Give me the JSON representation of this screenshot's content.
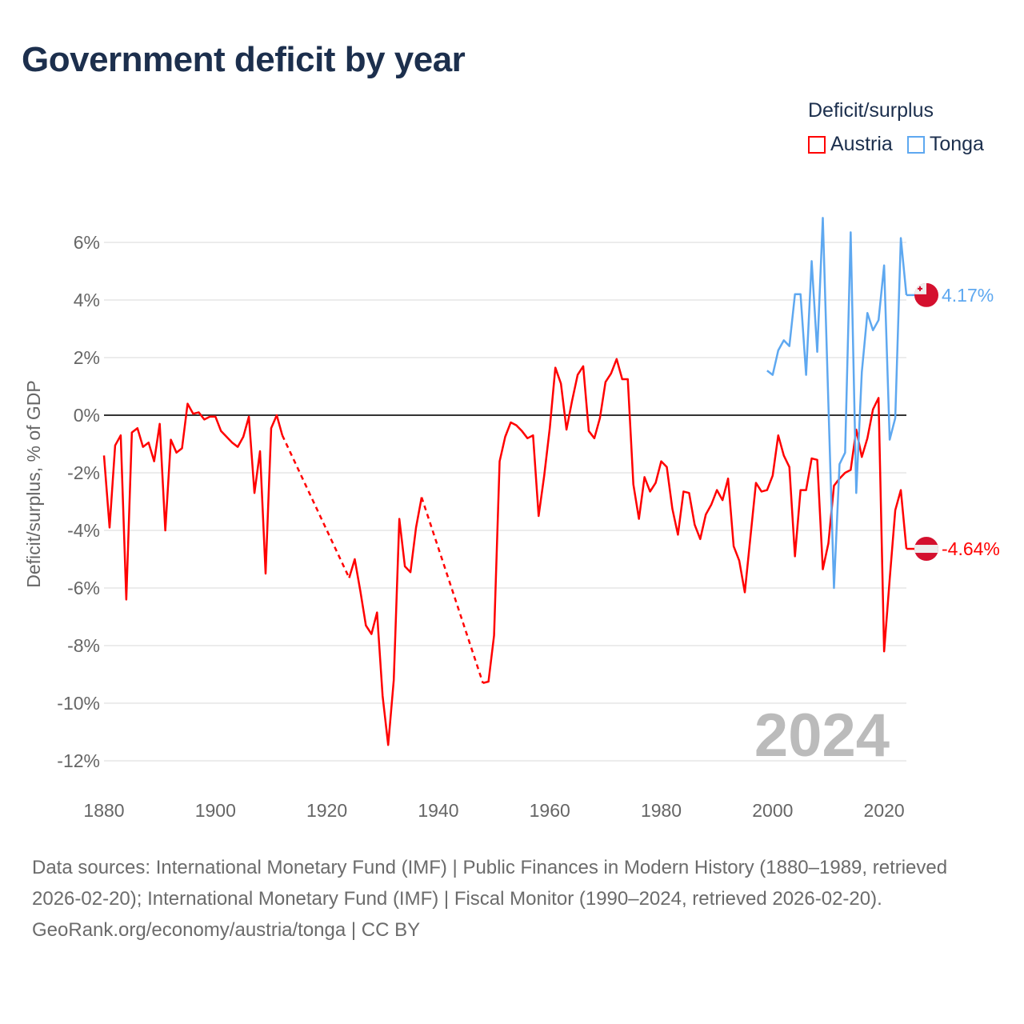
{
  "title": "Government deficit by year",
  "legend": {
    "title": "Deficit/surplus",
    "items": [
      "Austria",
      "Tonga"
    ]
  },
  "footer": {
    "sources": "Data sources: International Monetary Fund (IMF) | Public Finances in Modern History (1880–1989, retrieved 2026-02-20); International Monetary Fund (IMF) | Fiscal Monitor (1990–2024, retrieved 2026-02-20).",
    "credit": "GeoRank.org/economy/austria/tonga | CC BY"
  },
  "colors": {
    "Austria": "#ff0000",
    "Tonga": "#5ea8f0",
    "zero_line": "#333333",
    "grid": "#e6e6e6",
    "year_label": "#bbbbbb"
  },
  "chart_data": {
    "type": "line",
    "title": "Government deficit by year",
    "xlabel": "",
    "ylabel": "Deficit/surplus, % of GDP",
    "xlim": [
      1880,
      2024
    ],
    "ylim": [
      -12,
      6
    ],
    "x_ticks": [
      1880,
      1900,
      1920,
      1940,
      1960,
      1980,
      2000,
      2020
    ],
    "x_tick_labels": [
      "1880",
      "1900",
      "1920",
      "1940",
      "1960",
      "1980",
      "2000",
      "2020"
    ],
    "y_ticks": [
      6,
      4,
      2,
      0,
      -2,
      -4,
      -6,
      -8,
      -10,
      -12
    ],
    "y_tick_labels": [
      "6%",
      "4%",
      "2%",
      "0%",
      "-2%",
      "-4%",
      "-6%",
      "-8%",
      "-10%",
      "-12%"
    ],
    "year_label": "2024",
    "legend_position": "top-right",
    "series": [
      {
        "name": "Austria",
        "start_year": 1880,
        "end_label": "-4.64%",
        "flag": "austria-flag",
        "values": [
          -1.4,
          -3.9,
          -1.05,
          -0.7,
          -6.4,
          -0.6,
          -0.45,
          -1.1,
          -0.95,
          -1.6,
          -0.3,
          -4.0,
          -0.85,
          -1.3,
          -1.15,
          0.4,
          0.05,
          0.1,
          -0.15,
          -0.05,
          -0.05,
          -0.55,
          -0.75,
          -0.95,
          -1.1,
          -0.75,
          -0.05,
          -2.7,
          -1.25,
          -5.5,
          -0.45,
          0.0,
          -0.7,
          null,
          null,
          null,
          null,
          null,
          null,
          null,
          null,
          null,
          null,
          null,
          -5.65,
          -5.0,
          -6.1,
          -7.3,
          -7.6,
          -6.85,
          -9.75,
          -11.45,
          -9.2,
          -3.6,
          -5.25,
          -5.45,
          -3.9,
          -2.85,
          null,
          null,
          null,
          null,
          null,
          null,
          null,
          null,
          null,
          null,
          -9.3,
          -9.25,
          -7.65,
          -1.6,
          -0.75,
          -0.25,
          -0.35,
          -0.55,
          -0.8,
          -0.7,
          -3.5,
          -2.1,
          -0.45,
          1.65,
          1.1,
          -0.5,
          0.5,
          1.4,
          1.7,
          -0.55,
          -0.8,
          -0.1,
          1.15,
          1.45,
          1.95,
          1.25,
          1.25,
          -2.4,
          -3.6,
          -2.15,
          -2.65,
          -2.35,
          -1.6,
          -1.8,
          -3.25,
          -4.15,
          -2.65,
          -2.7,
          -3.8,
          -4.3,
          -3.45,
          -3.1,
          -2.6,
          -2.95,
          -2.2,
          -4.55,
          -5.05,
          -6.15,
          -4.25,
          -2.35,
          -2.65,
          -2.6,
          -2.1,
          -0.7,
          -1.4,
          -1.8,
          -4.9,
          -2.6,
          -2.6,
          -1.5,
          -1.55,
          -5.35,
          -4.45,
          -2.45,
          -2.2,
          -2.0,
          -1.9,
          -0.5,
          -1.45,
          -0.8,
          0.2,
          0.6,
          -8.2,
          -5.7,
          -3.3,
          -2.6,
          -4.64
        ]
      },
      {
        "name": "Tonga",
        "start_year": 1999,
        "end_label": "4.17%",
        "flag": "tonga-flag",
        "values": [
          1.55,
          1.4,
          2.25,
          2.6,
          2.4,
          4.2,
          4.2,
          1.4,
          5.35,
          2.2,
          6.85,
          0.4,
          -6.0,
          -1.7,
          -1.3,
          6.35,
          -2.7,
          1.5,
          3.55,
          2.95,
          3.3,
          5.2,
          -0.85,
          -0.1,
          6.15,
          4.17
        ]
      }
    ]
  }
}
